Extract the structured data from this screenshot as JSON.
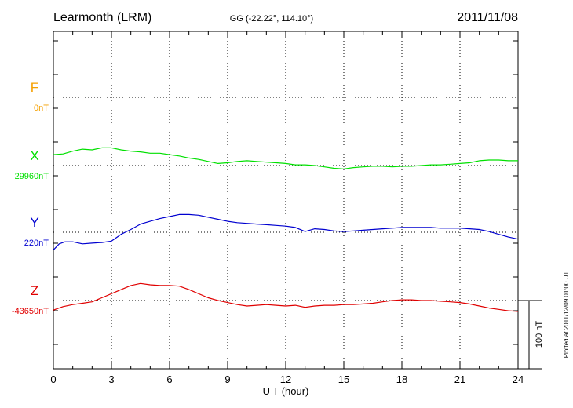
{
  "chart_data": {
    "type": "line",
    "title": "Learmonth (LRM)",
    "subtitle": "GG (-22.22°, 114.10°)",
    "date": "2011/11/08",
    "xlabel": "U T (hour)",
    "xlim": [
      0,
      24
    ],
    "x_ticks": [
      "0",
      "3",
      "6",
      "9",
      "12",
      "15",
      "18",
      "21",
      "24"
    ],
    "scale_label": "100 nT",
    "plotted_note": "Plotted at 2011/12/09 01:00 UT",
    "grid": true,
    "series": [
      {
        "name": "F",
        "baseline": "0nT",
        "color": "#f5a000",
        "points": []
      },
      {
        "name": "X",
        "baseline": "29960nT",
        "color": "#00e000",
        "points": [
          [
            0,
            29976
          ],
          [
            0.5,
            29977
          ],
          [
            1,
            29981
          ],
          [
            1.5,
            29984
          ],
          [
            2,
            29983
          ],
          [
            2.5,
            29986
          ],
          [
            3,
            29986
          ],
          [
            3.5,
            29983
          ],
          [
            4,
            29981
          ],
          [
            4.5,
            29980
          ],
          [
            5,
            29978
          ],
          [
            5.5,
            29978
          ],
          [
            6,
            29976
          ],
          [
            6.5,
            29974
          ],
          [
            7,
            29971
          ],
          [
            7.5,
            29969
          ],
          [
            8,
            29966
          ],
          [
            8.5,
            29963
          ],
          [
            9,
            29964
          ],
          [
            9.5,
            29966
          ],
          [
            10,
            29967
          ],
          [
            10.5,
            29966
          ],
          [
            11,
            29965
          ],
          [
            11.5,
            29964
          ],
          [
            12,
            29963
          ],
          [
            12.5,
            29961
          ],
          [
            13,
            29961
          ],
          [
            13.5,
            29960
          ],
          [
            14,
            29958
          ],
          [
            14.5,
            29956
          ],
          [
            15,
            29955
          ],
          [
            15.5,
            29957
          ],
          [
            16,
            29958
          ],
          [
            16.5,
            29959
          ],
          [
            17,
            29959
          ],
          [
            17.5,
            29958
          ],
          [
            18,
            29959
          ],
          [
            18.5,
            29959
          ],
          [
            19,
            29960
          ],
          [
            19.5,
            29961
          ],
          [
            20,
            29961
          ],
          [
            20.5,
            29962
          ],
          [
            21,
            29963
          ],
          [
            21.5,
            29964
          ],
          [
            22,
            29967
          ],
          [
            22.5,
            29968
          ],
          [
            23,
            29968
          ],
          [
            23.5,
            29967
          ],
          [
            24,
            29967
          ]
        ]
      },
      {
        "name": "Y",
        "baseline": "220nT",
        "color": "#0000d0",
        "points": [
          [
            0,
            194
          ],
          [
            0.3,
            203
          ],
          [
            0.6,
            206
          ],
          [
            1,
            206
          ],
          [
            1.5,
            203
          ],
          [
            2,
            204
          ],
          [
            2.5,
            205
          ],
          [
            3,
            207
          ],
          [
            3.5,
            217
          ],
          [
            4,
            224
          ],
          [
            4.5,
            232
          ],
          [
            5,
            236
          ],
          [
            5.5,
            240
          ],
          [
            6,
            243
          ],
          [
            6.5,
            246
          ],
          [
            7,
            246
          ],
          [
            7.5,
            245
          ],
          [
            8,
            242
          ],
          [
            8.5,
            239
          ],
          [
            9,
            236
          ],
          [
            9.5,
            234
          ],
          [
            10,
            233
          ],
          [
            10.5,
            232
          ],
          [
            11,
            231
          ],
          [
            11.5,
            230
          ],
          [
            12,
            229
          ],
          [
            12.5,
            227
          ],
          [
            13,
            221
          ],
          [
            13.5,
            225
          ],
          [
            14,
            224
          ],
          [
            14.5,
            222
          ],
          [
            15,
            221
          ],
          [
            15.5,
            222
          ],
          [
            16,
            223
          ],
          [
            16.5,
            224
          ],
          [
            17,
            225
          ],
          [
            17.5,
            226
          ],
          [
            18,
            227
          ],
          [
            18.5,
            227
          ],
          [
            19,
            227
          ],
          [
            19.5,
            227
          ],
          [
            20,
            226
          ],
          [
            20.5,
            226
          ],
          [
            21,
            226
          ],
          [
            21.5,
            225
          ],
          [
            22,
            224
          ],
          [
            22.5,
            221
          ],
          [
            23,
            217
          ],
          [
            23.5,
            213
          ],
          [
            24,
            210
          ]
        ]
      },
      {
        "name": "Z",
        "baseline": "-43650nT",
        "color": "#e00000",
        "points": [
          [
            0,
            -43664
          ],
          [
            0.5,
            -43659
          ],
          [
            1,
            -43656
          ],
          [
            1.5,
            -43654
          ],
          [
            2,
            -43652
          ],
          [
            2.5,
            -43646
          ],
          [
            3,
            -43640
          ],
          [
            3.5,
            -43634
          ],
          [
            4,
            -43628
          ],
          [
            4.5,
            -43625
          ],
          [
            5,
            -43627
          ],
          [
            5.5,
            -43628
          ],
          [
            6,
            -43628
          ],
          [
            6.5,
            -43629
          ],
          [
            7,
            -43634
          ],
          [
            7.5,
            -43640
          ],
          [
            8,
            -43646
          ],
          [
            8.5,
            -43650
          ],
          [
            9,
            -43653
          ],
          [
            9.5,
            -43656
          ],
          [
            10,
            -43658
          ],
          [
            10.5,
            -43657
          ],
          [
            11,
            -43656
          ],
          [
            11.5,
            -43657
          ],
          [
            12,
            -43658
          ],
          [
            12.5,
            -43657
          ],
          [
            13,
            -43660
          ],
          [
            13.5,
            -43658
          ],
          [
            14,
            -43657
          ],
          [
            14.5,
            -43657
          ],
          [
            15,
            -43656
          ],
          [
            15.5,
            -43656
          ],
          [
            16,
            -43655
          ],
          [
            16.5,
            -43654
          ],
          [
            17,
            -43652
          ],
          [
            17.5,
            -43650
          ],
          [
            18,
            -43649
          ],
          [
            18.5,
            -43649
          ],
          [
            19,
            -43650
          ],
          [
            19.5,
            -43650
          ],
          [
            20,
            -43651
          ],
          [
            20.5,
            -43652
          ],
          [
            21,
            -43653
          ],
          [
            21.5,
            -43655
          ],
          [
            22,
            -43658
          ],
          [
            22.5,
            -43661
          ],
          [
            23,
            -43663
          ],
          [
            23.5,
            -43665
          ],
          [
            24,
            -43666
          ]
        ]
      }
    ]
  }
}
